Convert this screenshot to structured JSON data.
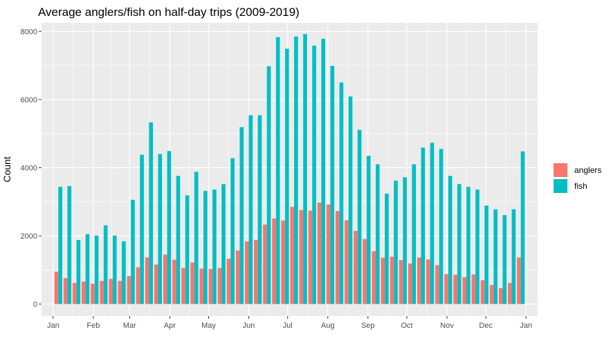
{
  "chart_data": {
    "type": "bar",
    "title": "Average anglers/fish on half-day trips (2009-2019)",
    "xlabel": "",
    "ylabel": "Count",
    "ylim": [
      -350,
      8250
    ],
    "yticks": [
      0,
      2000,
      4000,
      6000,
      8000
    ],
    "x_tick_labels": [
      "Jan",
      "Feb",
      "Mar",
      "Apr",
      "May",
      "Jun",
      "Jul",
      "Aug",
      "Sep",
      "Oct",
      "Nov",
      "Dec",
      "Jan"
    ],
    "x_tick_days": [
      1,
      32,
      60,
      91,
      121,
      152,
      182,
      213,
      244,
      274,
      305,
      335,
      366
    ],
    "x_range_days": [
      -8,
      375
    ],
    "grid": true,
    "legend_position": "right",
    "colors": {
      "anglers": "#F8766D",
      "fish": "#00BFC4"
    },
    "x": [
      5,
      12,
      19,
      26,
      33,
      40,
      47,
      54,
      61,
      68,
      75,
      82,
      89,
      96,
      103,
      110,
      117,
      124,
      131,
      138,
      145,
      152,
      159,
      166,
      173,
      180,
      187,
      194,
      201,
      208,
      215,
      222,
      229,
      236,
      243,
      250,
      257,
      264,
      271,
      278,
      285,
      292,
      299,
      306,
      313,
      320,
      327,
      334,
      341,
      348,
      355,
      362
    ],
    "series": [
      {
        "name": "anglers",
        "values": [
          950,
          760,
          620,
          660,
          600,
          680,
          740,
          680,
          820,
          1080,
          1370,
          1160,
          1450,
          1300,
          1060,
          1220,
          1040,
          1030,
          1060,
          1330,
          1570,
          1840,
          1880,
          2330,
          2510,
          2450,
          2850,
          2760,
          2740,
          2980,
          2920,
          2730,
          2460,
          2150,
          1910,
          1550,
          1360,
          1390,
          1290,
          1190,
          1370,
          1310,
          1140,
          880,
          860,
          790,
          870,
          700,
          560,
          470,
          620,
          1370
        ]
      },
      {
        "name": "fish",
        "values": [
          3440,
          3460,
          1880,
          2050,
          2010,
          2310,
          2010,
          1840,
          3060,
          4380,
          5330,
          4400,
          4490,
          3760,
          3190,
          3880,
          3320,
          3360,
          3520,
          4280,
          5190,
          5540,
          5540,
          6980,
          7830,
          7490,
          7850,
          7920,
          7580,
          7780,
          6990,
          6500,
          6090,
          5110,
          4350,
          4100,
          3240,
          3620,
          3720,
          4100,
          4590,
          4730,
          4550,
          3760,
          3520,
          3440,
          3360,
          2890,
          2780,
          2610,
          2780,
          4480
        ]
      }
    ]
  },
  "legend": {
    "items": [
      {
        "label": "anglers"
      },
      {
        "label": "fish"
      }
    ]
  }
}
